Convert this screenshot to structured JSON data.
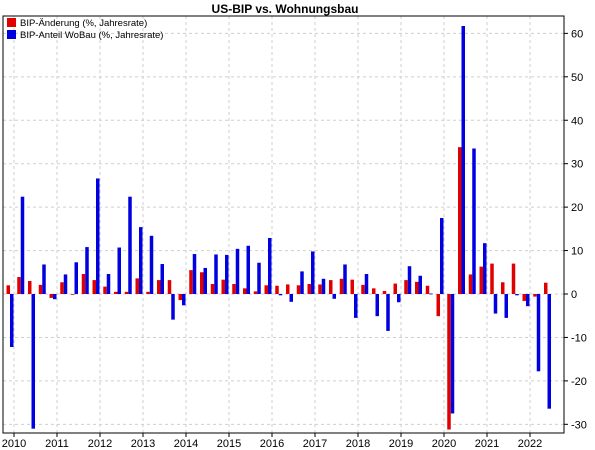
{
  "chart_data": {
    "type": "bar",
    "title": "US-BIP vs. Wohnungsbau",
    "xlabel": "",
    "ylabel": "",
    "ylim": [
      -32,
      64
    ],
    "y_ticks": [
      -30,
      -20,
      -10,
      0,
      10,
      20,
      30,
      40,
      50,
      60
    ],
    "y_axis_position": "right",
    "grid": true,
    "legend_position": "top-left",
    "x_ticks": [
      "2010",
      "2011",
      "2012",
      "2013",
      "2014",
      "2015",
      "2016",
      "2017",
      "2018",
      "2019",
      "2020",
      "2021",
      "2022"
    ],
    "categories": [
      "2010 Q1",
      "2010 Q2",
      "2010 Q3",
      "2010 Q4",
      "2011 Q1",
      "2011 Q2",
      "2011 Q3",
      "2011 Q4",
      "2012 Q1",
      "2012 Q2",
      "2012 Q3",
      "2012 Q4",
      "2013 Q1",
      "2013 Q2",
      "2013 Q3",
      "2013 Q4",
      "2014 Q1",
      "2014 Q2",
      "2014 Q3",
      "2014 Q4",
      "2015 Q1",
      "2015 Q2",
      "2015 Q3",
      "2015 Q4",
      "2016 Q1",
      "2016 Q2",
      "2016 Q3",
      "2016 Q4",
      "2017 Q1",
      "2017 Q2",
      "2017 Q3",
      "2017 Q4",
      "2018 Q1",
      "2018 Q2",
      "2018 Q3",
      "2018 Q4",
      "2019 Q1",
      "2019 Q2",
      "2019 Q3",
      "2019 Q4",
      "2020 Q1",
      "2020 Q2",
      "2020 Q3",
      "2020 Q4",
      "2021 Q1",
      "2021 Q2",
      "2021 Q3",
      "2021 Q4",
      "2022 Q1",
      "2022 Q2",
      "2022 Q3"
    ],
    "series": [
      {
        "name": "BIP-Änderung (%, Jahresrate)",
        "color": "#e00000",
        "values": [
          2.0,
          3.9,
          3.0,
          2.1,
          -0.9,
          2.7,
          -0.1,
          4.6,
          3.2,
          1.7,
          0.5,
          0.5,
          3.6,
          0.5,
          3.2,
          3.2,
          -1.4,
          5.5,
          5.0,
          2.3,
          3.3,
          2.3,
          1.3,
          0.6,
          2.0,
          1.9,
          2.2,
          2.0,
          2.3,
          2.2,
          3.2,
          3.5,
          3.3,
          2.1,
          1.3,
          0.7,
          2.4,
          3.2,
          2.8,
          1.9,
          -5.1,
          -31.2,
          33.8,
          4.5,
          6.3,
          7.0,
          2.7,
          7.0,
          -1.6,
          -0.6,
          2.6
        ]
      },
      {
        "name": "BIP-Anteil WoBau (%, Jahresrate)",
        "color": "#0000e0",
        "values": [
          -12.2,
          22.4,
          -31.0,
          6.8,
          -1.2,
          4.5,
          7.3,
          10.8,
          26.6,
          4.6,
          10.7,
          22.4,
          15.4,
          13.4,
          6.9,
          -5.9,
          -2.6,
          9.2,
          6.0,
          9.1,
          9.0,
          10.4,
          11.1,
          7.2,
          12.9,
          -0.3,
          -1.8,
          5.2,
          9.8,
          3.5,
          -1.1,
          6.8,
          -5.5,
          4.6,
          -5.1,
          -8.5,
          -1.9,
          6.4,
          4.2,
          0.1,
          17.5,
          -27.5,
          61.7,
          33.5,
          11.7,
          -4.5,
          -5.5,
          -0.3,
          -2.8,
          -17.8,
          -26.4
        ]
      }
    ]
  }
}
